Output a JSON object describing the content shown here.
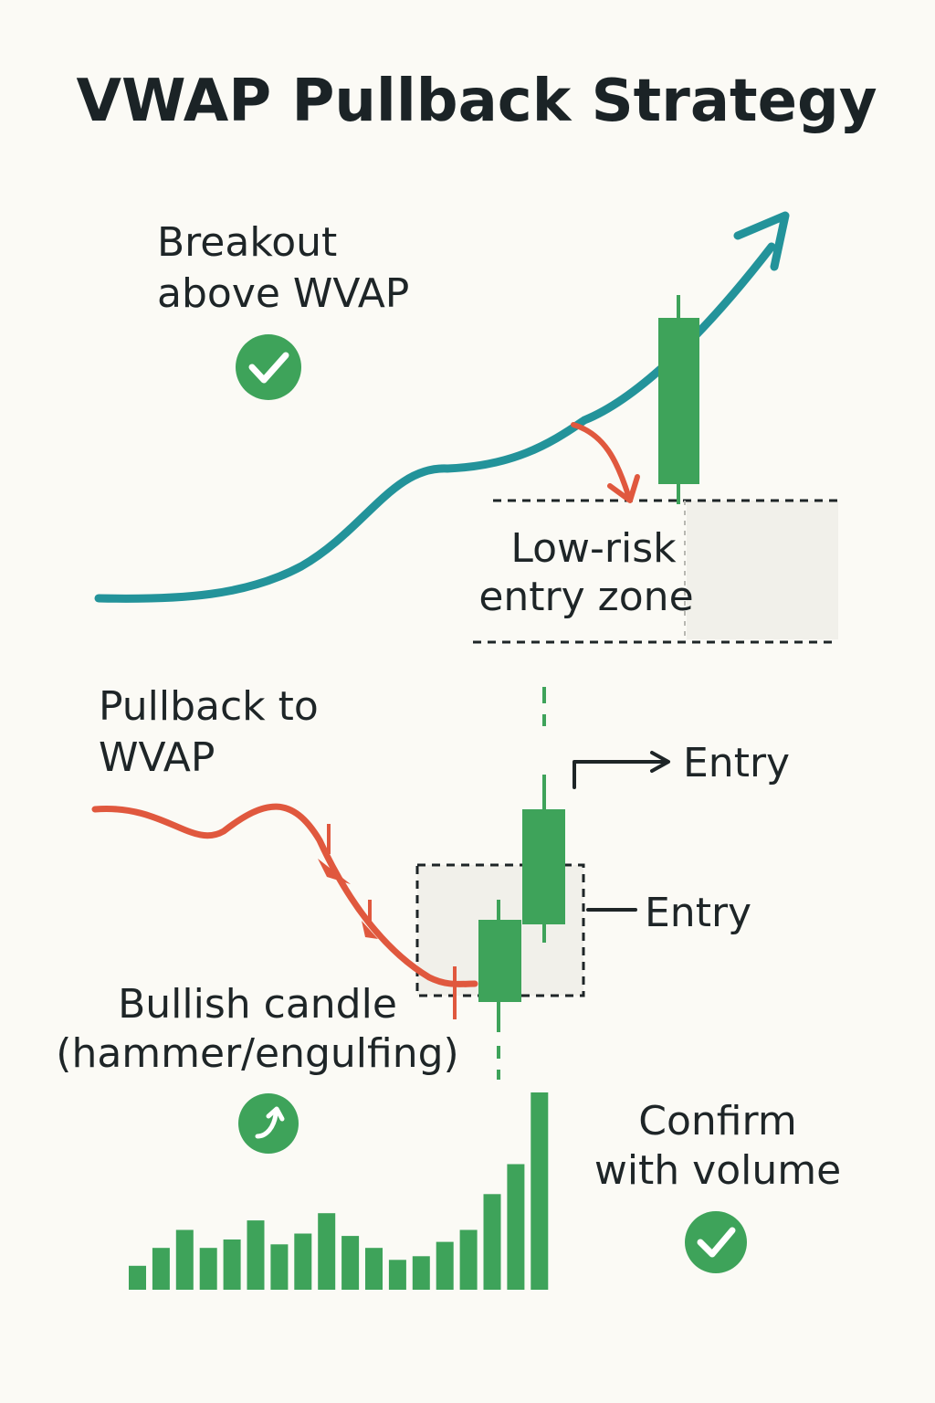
{
  "title": "VWAP Pullback Strategy",
  "labels": {
    "breakout_line1": "Breakout",
    "breakout_line2": "above WVAP",
    "low_risk_line1": "Low-risk",
    "low_risk_line2": "entry zone",
    "pullback_line1": "Pullback to",
    "pullback_line2": "WVAP",
    "entry_upper": "Entry",
    "entry_lower": "Entry",
    "bullish_line1": "Bullish candle",
    "bullish_line2": "(hammer/engulfing)",
    "confirm_line1": "Confirm",
    "confirm_line2": "with volume"
  },
  "icons": {
    "breakout_check": "check-circle-icon",
    "bullish_arrow": "curved-up-arrow-circle-icon",
    "confirm_check": "check-circle-icon"
  },
  "colors": {
    "background": "#fbfaf5",
    "vwap_line": "#23939a",
    "pullback": "#e0583e",
    "bullish": "#3ea35a",
    "text": "#1c2426",
    "zone_fill": "#f1f0ea"
  },
  "volume_bars": [
    2,
    3.5,
    5,
    3.5,
    4.2,
    5.8,
    3.8,
    4.7,
    6.4,
    4.5,
    3.5,
    2.5,
    2.8,
    4,
    5,
    8,
    10.5,
    16.5
  ]
}
